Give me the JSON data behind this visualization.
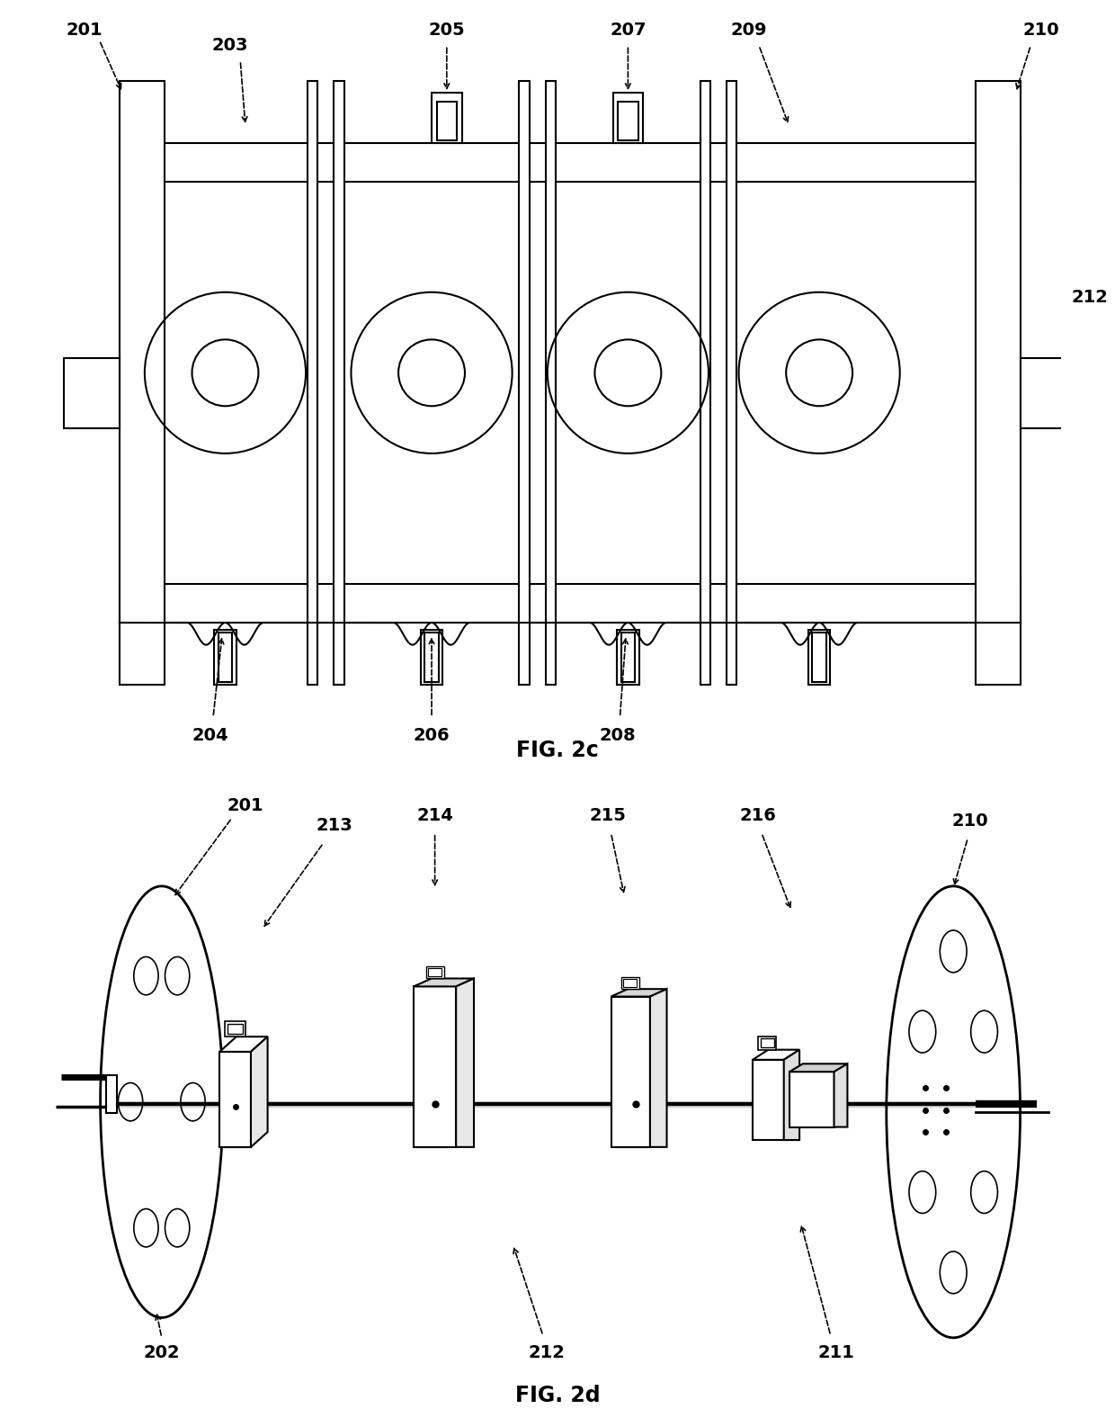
{
  "fig_width": 12.4,
  "fig_height": 15.76,
  "background": "#ffffff",
  "line_color": "#000000",
  "fig2c_title": "FIG. 2c",
  "fig2d_title": "FIG. 2d"
}
